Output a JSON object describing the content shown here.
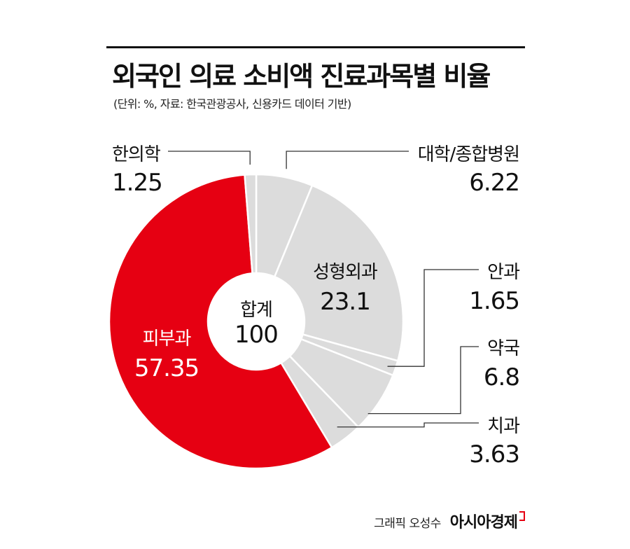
{
  "title": "외국인 의료 소비액 진료과목별 비율",
  "subtitle": "(단위: %, 자료: 한국관광공사, 신용카드 데이터 기반)",
  "center": {
    "label": "합계",
    "value": "100"
  },
  "footer": {
    "credit": "그래픽 오성수",
    "brand": "아시아경제"
  },
  "colors": {
    "highlight": "#e60012",
    "slice": "#dcdcdc",
    "stroke": "#ffffff",
    "leader": "#333333"
  },
  "chart_data": {
    "type": "pie",
    "categories": [
      "대학/종합병원",
      "성형외과",
      "안과",
      "약국",
      "치과",
      "피부과",
      "한의학"
    ],
    "values": [
      6.22,
      23.1,
      1.65,
      6.8,
      3.63,
      57.35,
      1.25
    ],
    "value_labels": [
      "6.22",
      "23.1",
      "1.65",
      "6.8",
      "3.63",
      "57.35",
      "1.25"
    ],
    "highlight": "피부과",
    "donut": true,
    "start": "12 o'clock",
    "direction": "clockwise"
  }
}
